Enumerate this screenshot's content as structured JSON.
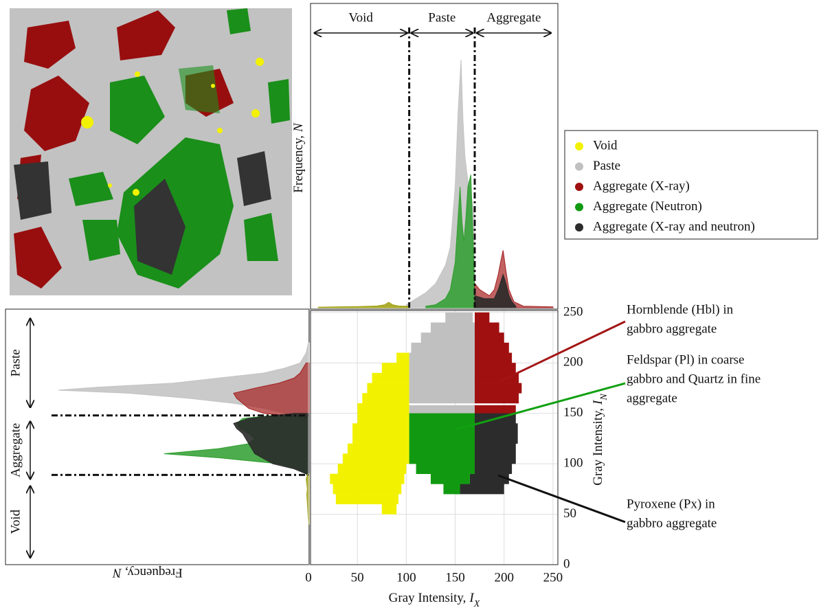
{
  "chart_data": [
    {
      "type": "area",
      "orientation": "vertical",
      "ylabel": "Frequency,",
      "ylabel_symbol": "N",
      "xlim": [
        0,
        255
      ],
      "ylim": [
        0,
        100
      ],
      "thresholds": [
        103,
        170
      ],
      "regions": [
        {
          "label": "Void",
          "from": 4,
          "to": 103
        },
        {
          "label": "Paste",
          "from": 103,
          "to": 170
        },
        {
          "label": "Aggregate",
          "from": 170,
          "to": 250
        }
      ],
      "series": [
        {
          "color": "#c4c4c4",
          "opacity": 0.9,
          "x": [
            100,
            110,
            120,
            130,
            140,
            145,
            150,
            153,
            156,
            158,
            160,
            163,
            166,
            170
          ],
          "values": [
            1,
            3,
            5,
            8,
            14,
            20,
            40,
            65,
            82,
            62,
            50,
            42,
            38,
            30
          ]
        },
        {
          "color": "#2e9e2e",
          "opacity": 0.85,
          "x": [
            120,
            130,
            140,
            145,
            150,
            153,
            155,
            157,
            159,
            161,
            163,
            166,
            168,
            170
          ],
          "values": [
            0.5,
            1,
            3,
            6,
            15,
            30,
            40,
            28,
            22,
            30,
            40,
            44,
            25,
            5
          ]
        },
        {
          "color": "#a52020",
          "opacity": 0.7,
          "x": [
            170,
            175,
            180,
            185,
            190,
            194,
            197,
            199,
            202,
            205,
            210,
            220,
            250
          ],
          "values": [
            8,
            6,
            5,
            4,
            6,
            11,
            16,
            19,
            12,
            6,
            2,
            0.5,
            0.3
          ]
        },
        {
          "color": "#2a2a2a",
          "opacity": 0.9,
          "x": [
            170,
            175,
            180,
            190,
            194,
            197,
            199,
            202,
            205,
            208,
            212
          ],
          "values": [
            4,
            3.5,
            3,
            3,
            6,
            9,
            11,
            8,
            4,
            2,
            0.5
          ]
        },
        {
          "color": "#a3a31a",
          "opacity": 0.9,
          "x": [
            10,
            30,
            50,
            70,
            78,
            82,
            86,
            92,
            103
          ],
          "values": [
            0.2,
            0.3,
            0.4,
            0.6,
            1,
            1.8,
            1,
            0.6,
            0.5
          ]
        }
      ]
    },
    {
      "type": "area",
      "orientation": "horizontal",
      "xlabel": "Frequency,",
      "xlabel_symbol": "N",
      "xlim": [
        0,
        100
      ],
      "ylim": [
        0,
        252
      ],
      "thresholds": [
        89,
        148
      ],
      "regions": [
        {
          "label": "Paste",
          "from": 154,
          "to": 246
        },
        {
          "label": "Aggregate",
          "from": 83,
          "to": 144
        },
        {
          "label": "Void",
          "from": 5,
          "to": 80
        }
      ],
      "series": [
        {
          "color": "#c4c4c4",
          "opacity": 0.9,
          "y": [
            145,
            150,
            155,
            160,
            165,
            170,
            173,
            176,
            180,
            185,
            190,
            195,
            200,
            210,
            220
          ],
          "values": [
            2,
            8,
            15,
            25,
            40,
            60,
            83,
            70,
            45,
            30,
            15,
            8,
            3,
            1,
            0.3
          ]
        },
        {
          "color": "#a52020",
          "opacity": 0.7,
          "y": [
            145,
            147,
            150,
            155,
            160,
            165,
            170,
            175,
            180,
            185,
            190,
            200
          ],
          "values": [
            1,
            5,
            15,
            20,
            22,
            24,
            25,
            18,
            10,
            5,
            3,
            1
          ]
        },
        {
          "color": "#2e9e2e",
          "opacity": 0.85,
          "y": [
            88,
            90,
            95,
            100,
            106,
            110,
            115,
            120,
            125,
            130,
            135,
            140,
            145,
            148
          ],
          "values": [
            0.5,
            1,
            4,
            10,
            30,
            48,
            30,
            20,
            18,
            20,
            23,
            24,
            22,
            12
          ]
        },
        {
          "color": "#2a2a2a",
          "opacity": 0.9,
          "y": [
            88,
            90,
            95,
            100,
            110,
            120,
            130,
            135,
            140,
            145,
            150
          ],
          "values": [
            0.5,
            1,
            5,
            12,
            18,
            20,
            22,
            24,
            25,
            20,
            5
          ]
        },
        {
          "color": "#a3a31a",
          "opacity": 0.9,
          "y": [
            40,
            50,
            60,
            70,
            75,
            85,
            90
          ],
          "values": [
            0.2,
            0.4,
            0.6,
            0.8,
            0.6,
            1,
            0.5
          ]
        }
      ]
    },
    {
      "type": "scatter",
      "xlabel": "Gray Intensity,",
      "xlabel_symbol": "I",
      "xlabel_sub": "X",
      "ylabel": "Gray Intensity,",
      "ylabel_symbol": "I",
      "ylabel_sub": "N",
      "xlim": [
        0,
        255
      ],
      "ylim": [
        0,
        252
      ],
      "xticks": [
        0,
        50,
        100,
        150,
        200,
        250
      ],
      "yticks": [
        0,
        50,
        100,
        150,
        200,
        250
      ],
      "grid": true,
      "series": [
        {
          "name": "Void",
          "color": "#f2f200",
          "y": [
            55,
            65,
            75,
            85,
            95,
            105,
            115,
            125,
            135,
            145,
            155,
            165,
            175,
            185,
            195,
            205
          ],
          "xlow": [
            75,
            28,
            25,
            22,
            30,
            35,
            40,
            45,
            45,
            50,
            50,
            55,
            60,
            65,
            75,
            90
          ],
          "xhigh": [
            90,
            92,
            95,
            98,
            100,
            103,
            103,
            103,
            103,
            103,
            103,
            103,
            103,
            103,
            103,
            103
          ]
        },
        {
          "name": "Paste",
          "color": "#c0c0c0",
          "y": [
            153,
            165,
            175,
            185,
            195,
            205,
            215,
            225,
            235,
            245
          ],
          "xlow": [
            103,
            103,
            103,
            103,
            103,
            103,
            105,
            115,
            125,
            140
          ],
          "xhigh": [
            170,
            170,
            170,
            170,
            170,
            170,
            170,
            170,
            170,
            168
          ]
        },
        {
          "name": "Aggregate (X-ray)",
          "color": "#a01010",
          "y": [
            153,
            165,
            175,
            185,
            195,
            205,
            215,
            225,
            235,
            245
          ],
          "xlow": [
            170,
            170,
            170,
            170,
            170,
            170,
            170,
            170,
            170,
            170
          ],
          "xhigh": [
            212,
            215,
            218,
            215,
            212,
            208,
            205,
            200,
            195,
            185
          ]
        },
        {
          "name": "Aggregate (X-ray and neutron)",
          "color": "#2c2c2c",
          "y": [
            75,
            85,
            95,
            105,
            115,
            125,
            135,
            145
          ],
          "xlow": [
            150,
            165,
            170,
            170,
            170,
            170,
            170,
            170
          ],
          "xhigh": [
            200,
            205,
            208,
            212,
            212,
            214,
            214,
            212
          ]
        },
        {
          "name": "Aggregate (Neutron)",
          "color": "#119a11",
          "y": [
            75,
            85,
            95,
            105,
            115,
            125,
            135,
            145
          ],
          "xlow": [
            138,
            125,
            110,
            103,
            103,
            103,
            103,
            103
          ],
          "xhigh": [
            155,
            165,
            170,
            170,
            170,
            170,
            170,
            170
          ]
        }
      ],
      "annotations": [
        {
          "lines": [
            "Hornblende (Hbl) in",
            "gabbro aggregate"
          ],
          "color": "#a31515"
        },
        {
          "lines": [
            "Feldspar (Pl) in coarse",
            "gabbro and Quartz in fine",
            "aggregate"
          ],
          "color": "#11a011"
        },
        {
          "lines": [
            "Pyroxene (Px) in",
            "gabbro aggregate"
          ],
          "color": "#111111"
        }
      ]
    }
  ]
}
